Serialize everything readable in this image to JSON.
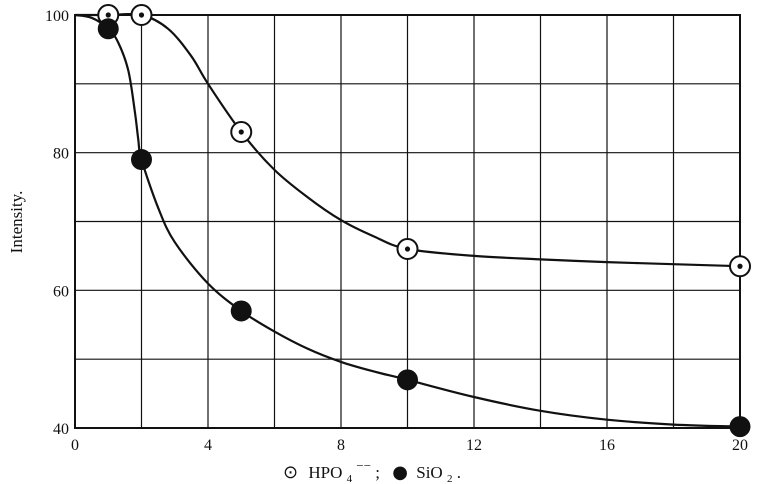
{
  "chart_data": {
    "type": "line",
    "title": "",
    "ylabel": "Intensity.",
    "xlabel": "",
    "xlim": [
      0,
      20
    ],
    "ylim": [
      40,
      100
    ],
    "grid": true,
    "x_ticks": [
      "0",
      "4",
      "8",
      "12",
      "16",
      "20"
    ],
    "y_ticks": [
      "40",
      "60",
      "80",
      "100"
    ],
    "legend": {
      "placement": "bottom",
      "hpo4_symbol": "⊙",
      "hpo4_label": "HPO",
      "hpo4_sub": "4",
      "hpo4_sup": "−−",
      "separator": ";",
      "sio2_label": "SiO",
      "sio2_sub": "2",
      "sio2_end": "."
    },
    "series": [
      {
        "name": "HPO4−−",
        "marker": "open-dot",
        "points": [
          [
            1,
            100
          ],
          [
            2,
            100
          ],
          [
            5,
            83
          ],
          [
            10,
            66
          ],
          [
            20,
            63.5
          ]
        ],
        "curve": [
          [
            0,
            100
          ],
          [
            1,
            100
          ],
          [
            2,
            100
          ],
          [
            2.8,
            98
          ],
          [
            3.5,
            94
          ],
          [
            4,
            90
          ],
          [
            5,
            83
          ],
          [
            6,
            77.5
          ],
          [
            7,
            73.5
          ],
          [
            8,
            70.2
          ],
          [
            9,
            67.8
          ],
          [
            10,
            66
          ],
          [
            12,
            65
          ],
          [
            14,
            64.5
          ],
          [
            16,
            64.1
          ],
          [
            18,
            63.8
          ],
          [
            20,
            63.5
          ]
        ]
      },
      {
        "name": "SiO2",
        "marker": "filled-dot",
        "points": [
          [
            1,
            98
          ],
          [
            2,
            79
          ],
          [
            5,
            57
          ],
          [
            10,
            47
          ],
          [
            20,
            40.2
          ]
        ],
        "curve": [
          [
            0,
            100
          ],
          [
            0.5,
            99.6
          ],
          [
            1,
            98
          ],
          [
            1.3,
            96
          ],
          [
            1.6,
            92
          ],
          [
            1.8,
            86
          ],
          [
            1.9,
            82
          ],
          [
            2,
            79
          ],
          [
            2.5,
            72
          ],
          [
            3,
            67
          ],
          [
            4,
            61
          ],
          [
            5,
            57
          ],
          [
            6,
            54
          ],
          [
            7,
            51.5
          ],
          [
            8,
            49.6
          ],
          [
            9,
            48.2
          ],
          [
            10,
            47
          ],
          [
            12,
            44.5
          ],
          [
            14,
            42.5
          ],
          [
            16,
            41.2
          ],
          [
            18,
            40.5
          ],
          [
            20,
            40.2
          ]
        ]
      }
    ],
    "colors": {
      "line": "#111111",
      "grid": "#111111",
      "background": "#ffffff"
    }
  }
}
